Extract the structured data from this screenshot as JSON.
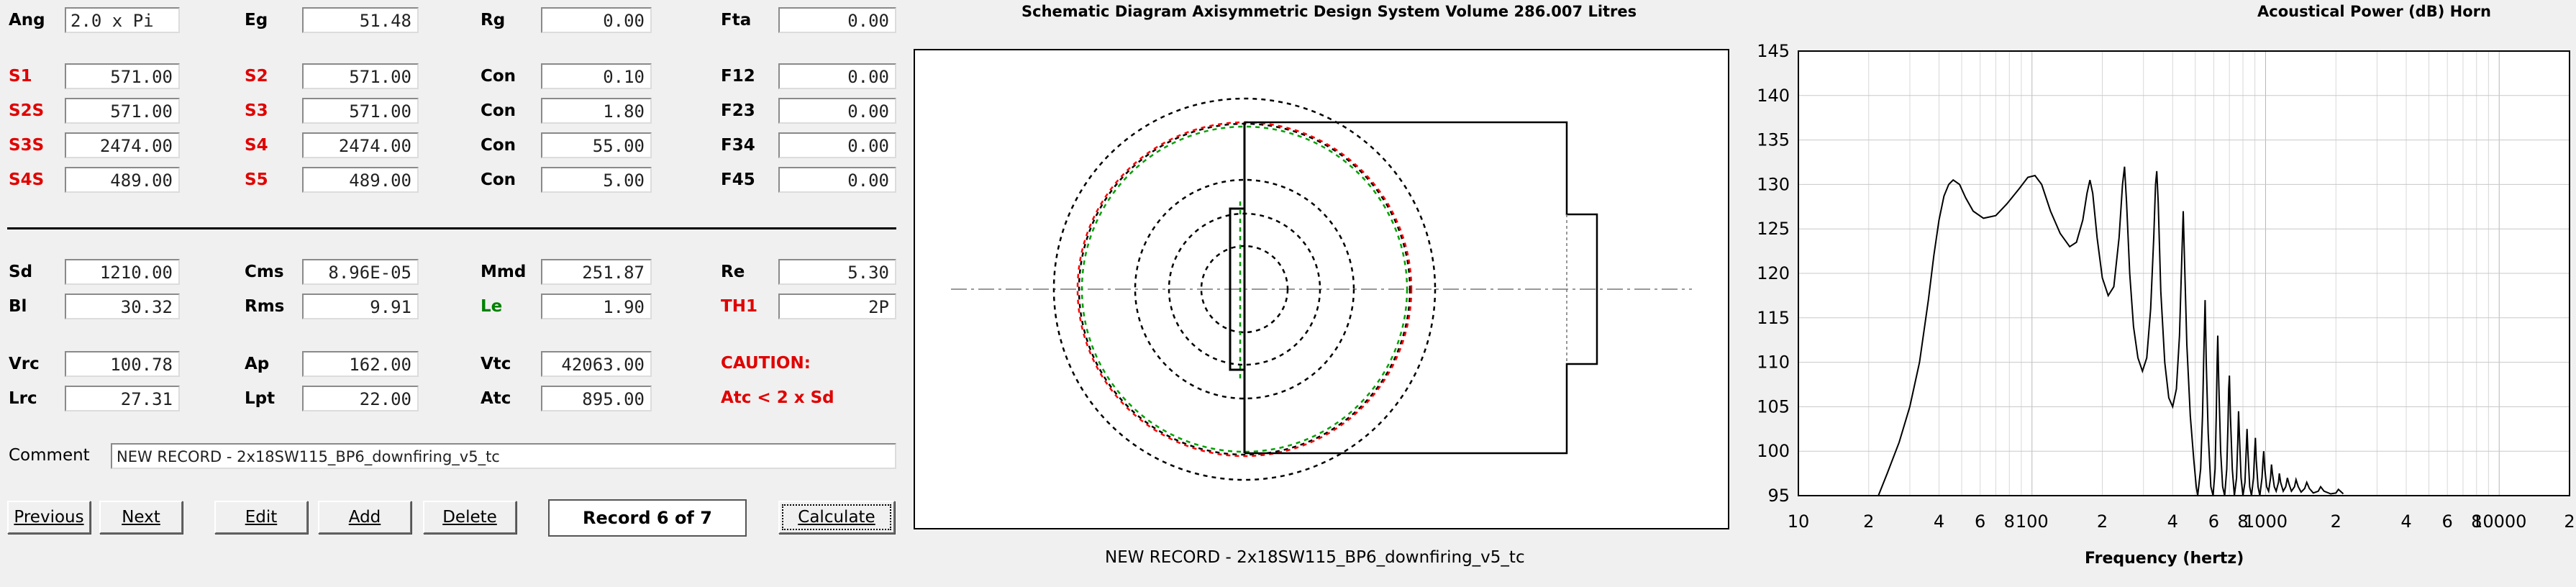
{
  "params": {
    "row1": [
      {
        "label": "Ang",
        "value": "2.0 x Pi",
        "color": "black"
      },
      {
        "label": "Eg",
        "value": "51.48",
        "color": "black"
      },
      {
        "label": "Rg",
        "value": "0.00",
        "color": "black"
      },
      {
        "label": "Fta",
        "value": "0.00",
        "color": "black"
      }
    ],
    "segments": [
      [
        {
          "label": "S1",
          "value": "571.00",
          "color": "red"
        },
        {
          "label": "S2",
          "value": "571.00",
          "color": "red"
        },
        {
          "label": "Con",
          "value": "0.10",
          "color": "black"
        },
        {
          "label": "F12",
          "value": "0.00",
          "color": "black"
        }
      ],
      [
        {
          "label": "S2S",
          "value": "571.00",
          "color": "red"
        },
        {
          "label": "S3",
          "value": "571.00",
          "color": "red"
        },
        {
          "label": "Con",
          "value": "1.80",
          "color": "black"
        },
        {
          "label": "F23",
          "value": "0.00",
          "color": "black"
        }
      ],
      [
        {
          "label": "S3S",
          "value": "2474.00",
          "color": "red"
        },
        {
          "label": "S4",
          "value": "2474.00",
          "color": "red"
        },
        {
          "label": "Con",
          "value": "55.00",
          "color": "black"
        },
        {
          "label": "F34",
          "value": "0.00",
          "color": "black"
        }
      ],
      [
        {
          "label": "S4S",
          "value": "489.00",
          "color": "red"
        },
        {
          "label": "S5",
          "value": "489.00",
          "color": "red"
        },
        {
          "label": "Con",
          "value": "5.00",
          "color": "black"
        },
        {
          "label": "F45",
          "value": "0.00",
          "color": "black"
        }
      ]
    ],
    "driver": [
      [
        {
          "label": "Sd",
          "value": "1210.00",
          "color": "black"
        },
        {
          "label": "Cms",
          "value": "8.96E-05",
          "color": "black"
        },
        {
          "label": "Mmd",
          "value": "251.87",
          "color": "black"
        },
        {
          "label": "Re",
          "value": "5.30",
          "color": "black"
        }
      ],
      [
        {
          "label": "Bl",
          "value": "30.32",
          "color": "black"
        },
        {
          "label": "Rms",
          "value": "9.91",
          "color": "black"
        },
        {
          "label": "Le",
          "value": "1.90",
          "color": "green"
        },
        {
          "label": "TH1",
          "value": "2P",
          "color": "red"
        }
      ]
    ],
    "chambers": [
      [
        {
          "label": "Vrc",
          "value": "100.78"
        },
        {
          "label": "Ap",
          "value": "162.00"
        },
        {
          "label": "Vtc",
          "value": "42063.00"
        }
      ],
      [
        {
          "label": "Lrc",
          "value": "27.31"
        },
        {
          "label": "Lpt",
          "value": "22.00"
        },
        {
          "label": "Atc",
          "value": "895.00"
        }
      ]
    ],
    "caution_title": "CAUTION:",
    "caution_text": "Atc < 2 x Sd"
  },
  "comment": {
    "label": "Comment",
    "value": "NEW RECORD - 2x18SW115_BP6_downfiring_v5_tc"
  },
  "buttons": {
    "previous": "Previous",
    "next": "Next",
    "edit": "Edit",
    "add": "Add",
    "delete": "Delete",
    "calculate": "Calculate"
  },
  "record": "Record 6 of 7",
  "schematic": {
    "title": "Schematic Diagram   Axisymmetric Design   System Volume 286.007 Litres",
    "caption": "NEW RECORD - 2x18SW115_BP6_downfiring_v5_tc"
  },
  "colors": {
    "label_red": "#e00000",
    "label_green": "#008000",
    "schematic_red": "#ff0000",
    "schematic_green": "#00a000"
  },
  "chart_data": {
    "type": "line",
    "title": "Acoustical Power (dB)    Horn",
    "xlabel": "Frequency (hertz)",
    "ylabel": "",
    "xscale": "log",
    "xlim": [
      10,
      20000
    ],
    "ylim": [
      95,
      145
    ],
    "yticks": [
      95,
      100,
      105,
      110,
      115,
      120,
      125,
      130,
      135,
      140,
      145
    ],
    "xticks": [
      {
        "value": 10,
        "label": "10"
      },
      {
        "value": 20,
        "label": "2"
      },
      {
        "value": 40,
        "label": "4"
      },
      {
        "value": 60,
        "label": "6"
      },
      {
        "value": 80,
        "label": "8"
      },
      {
        "value": 100,
        "label": "100"
      },
      {
        "value": 200,
        "label": "2"
      },
      {
        "value": 400,
        "label": "4"
      },
      {
        "value": 600,
        "label": "6"
      },
      {
        "value": 800,
        "label": "8"
      },
      {
        "value": 1000,
        "label": "1000"
      },
      {
        "value": 2000,
        "label": "2"
      },
      {
        "value": 4000,
        "label": "4"
      },
      {
        "value": 6000,
        "label": "6"
      },
      {
        "value": 8000,
        "label": "8"
      },
      {
        "value": 10000,
        "label": "10000"
      },
      {
        "value": 20000,
        "label": "2"
      }
    ],
    "grid": true,
    "series": [
      {
        "values": [
          [
            22,
            95
          ],
          [
            24,
            97.5
          ],
          [
            27,
            101
          ],
          [
            30,
            105
          ],
          [
            33,
            110
          ],
          [
            36,
            117
          ],
          [
            38,
            122
          ],
          [
            40,
            126
          ],
          [
            42,
            128.7
          ],
          [
            44,
            130
          ],
          [
            46,
            130.5
          ],
          [
            49,
            130
          ],
          [
            52,
            128.5
          ],
          [
            56,
            127
          ],
          [
            62,
            126.2
          ],
          [
            70,
            126.5
          ],
          [
            78,
            127.8
          ],
          [
            88,
            129.5
          ],
          [
            96,
            130.8
          ],
          [
            103,
            131
          ],
          [
            110,
            130
          ],
          [
            120,
            127
          ],
          [
            132,
            124.5
          ],
          [
            145,
            123
          ],
          [
            155,
            123.5
          ],
          [
            165,
            126
          ],
          [
            172,
            129
          ],
          [
            177,
            130.5
          ],
          [
            182,
            129
          ],
          [
            190,
            124
          ],
          [
            200,
            119.5
          ],
          [
            212,
            117.5
          ],
          [
            224,
            118.5
          ],
          [
            236,
            124
          ],
          [
            244,
            130
          ],
          [
            249,
            132
          ],
          [
            254,
            128
          ],
          [
            262,
            120
          ],
          [
            272,
            114
          ],
          [
            284,
            110.5
          ],
          [
            297,
            109
          ],
          [
            310,
            110.5
          ],
          [
            322,
            116
          ],
          [
            332,
            124
          ],
          [
            338,
            130
          ],
          [
            342,
            131.5
          ],
          [
            347,
            128
          ],
          [
            356,
            118
          ],
          [
            370,
            110
          ],
          [
            385,
            106
          ],
          [
            400,
            105
          ],
          [
            415,
            107
          ],
          [
            428,
            113
          ],
          [
            438,
            122
          ],
          [
            444,
            127
          ],
          [
            449,
            122
          ],
          [
            460,
            112
          ],
          [
            476,
            104
          ],
          [
            493,
            99
          ],
          [
            505,
            96
          ],
          [
            512,
            95
          ],
          [
            527,
            98
          ],
          [
            537,
            104
          ],
          [
            545,
            112
          ],
          [
            551,
            117
          ],
          [
            557,
            110
          ],
          [
            568,
            102
          ],
          [
            583,
            96
          ],
          [
            596,
            95
          ],
          [
            608,
            98
          ],
          [
            615,
            104
          ],
          [
            620,
            110
          ],
          [
            624,
            113
          ],
          [
            630,
            108
          ],
          [
            642,
            100
          ],
          [
            655,
            96
          ],
          [
            668,
            95
          ],
          [
            682,
            98
          ],
          [
            690,
            103
          ],
          [
            695,
            107
          ],
          [
            700,
            108.5
          ],
          [
            707,
            104
          ],
          [
            720,
            98
          ],
          [
            735,
            95
          ],
          [
            751,
            97
          ],
          [
            760,
            101
          ],
          [
            766,
            104.5
          ],
          [
            772,
            102
          ],
          [
            785,
            97
          ],
          [
            800,
            95
          ],
          [
            816,
            96.5
          ],
          [
            826,
            100
          ],
          [
            833,
            102.5
          ],
          [
            840,
            100
          ],
          [
            855,
            96
          ],
          [
            870,
            95
          ],
          [
            888,
            97
          ],
          [
            898,
            100
          ],
          [
            904,
            101.5
          ],
          [
            912,
            99
          ],
          [
            928,
            96
          ],
          [
            945,
            95
          ],
          [
            965,
            97
          ],
          [
            975,
            99
          ],
          [
            982,
            100
          ],
          [
            992,
            98
          ],
          [
            1010,
            96
          ],
          [
            1030,
            95.5
          ],
          [
            1050,
            97
          ],
          [
            1060,
            98.5
          ],
          [
            1070,
            97.5
          ],
          [
            1090,
            96
          ],
          [
            1110,
            95.5
          ],
          [
            1135,
            96.5
          ],
          [
            1145,
            97.5
          ],
          [
            1160,
            96.5
          ],
          [
            1190,
            95.5
          ],
          [
            1220,
            96
          ],
          [
            1240,
            97
          ],
          [
            1260,
            96.3
          ],
          [
            1290,
            95.5
          ],
          [
            1330,
            96
          ],
          [
            1350,
            96.8
          ],
          [
            1380,
            96
          ],
          [
            1420,
            95.4
          ],
          [
            1470,
            95.8
          ],
          [
            1500,
            96.5
          ],
          [
            1540,
            95.8
          ],
          [
            1600,
            95.3
          ],
          [
            1680,
            95.5
          ],
          [
            1720,
            96
          ],
          [
            1780,
            95.5
          ],
          [
            1900,
            95.2
          ],
          [
            2000,
            95.3
          ],
          [
            2050,
            95.7
          ],
          [
            2150,
            95.2
          ]
        ]
      }
    ]
  }
}
